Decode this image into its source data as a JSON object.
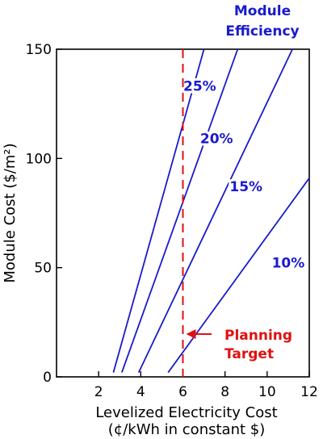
{
  "chart_data": {
    "type": "line",
    "xlabel": "Levelized Electricity Cost",
    "xlabel_sub": "(¢/kWh in constant $)",
    "ylabel": "Module Cost ($/m²)",
    "xlim": [
      0,
      12
    ],
    "ylim": [
      0,
      150
    ],
    "xticks": [
      2,
      4,
      6,
      8,
      10,
      12
    ],
    "yticks": [
      0,
      50,
      100,
      150
    ],
    "legend_title_line1": "Module",
    "legend_title_line2": "Efficiency",
    "series_color": "#1a1acd",
    "series": [
      {
        "name": "25%",
        "x": [
          2.7,
          7.0
        ],
        "y": [
          2,
          150
        ]
      },
      {
        "name": "20%",
        "x": [
          3.1,
          8.6
        ],
        "y": [
          2,
          150
        ]
      },
      {
        "name": "15%",
        "x": [
          3.9,
          11.2
        ],
        "y": [
          2,
          150
        ]
      },
      {
        "name": "10%",
        "x": [
          5.3,
          12.0
        ],
        "y": [
          2,
          91
        ]
      }
    ],
    "planning_target": {
      "x": 6,
      "color": "#e01010",
      "label_line1": "Planning",
      "label_line2": "Target"
    }
  }
}
